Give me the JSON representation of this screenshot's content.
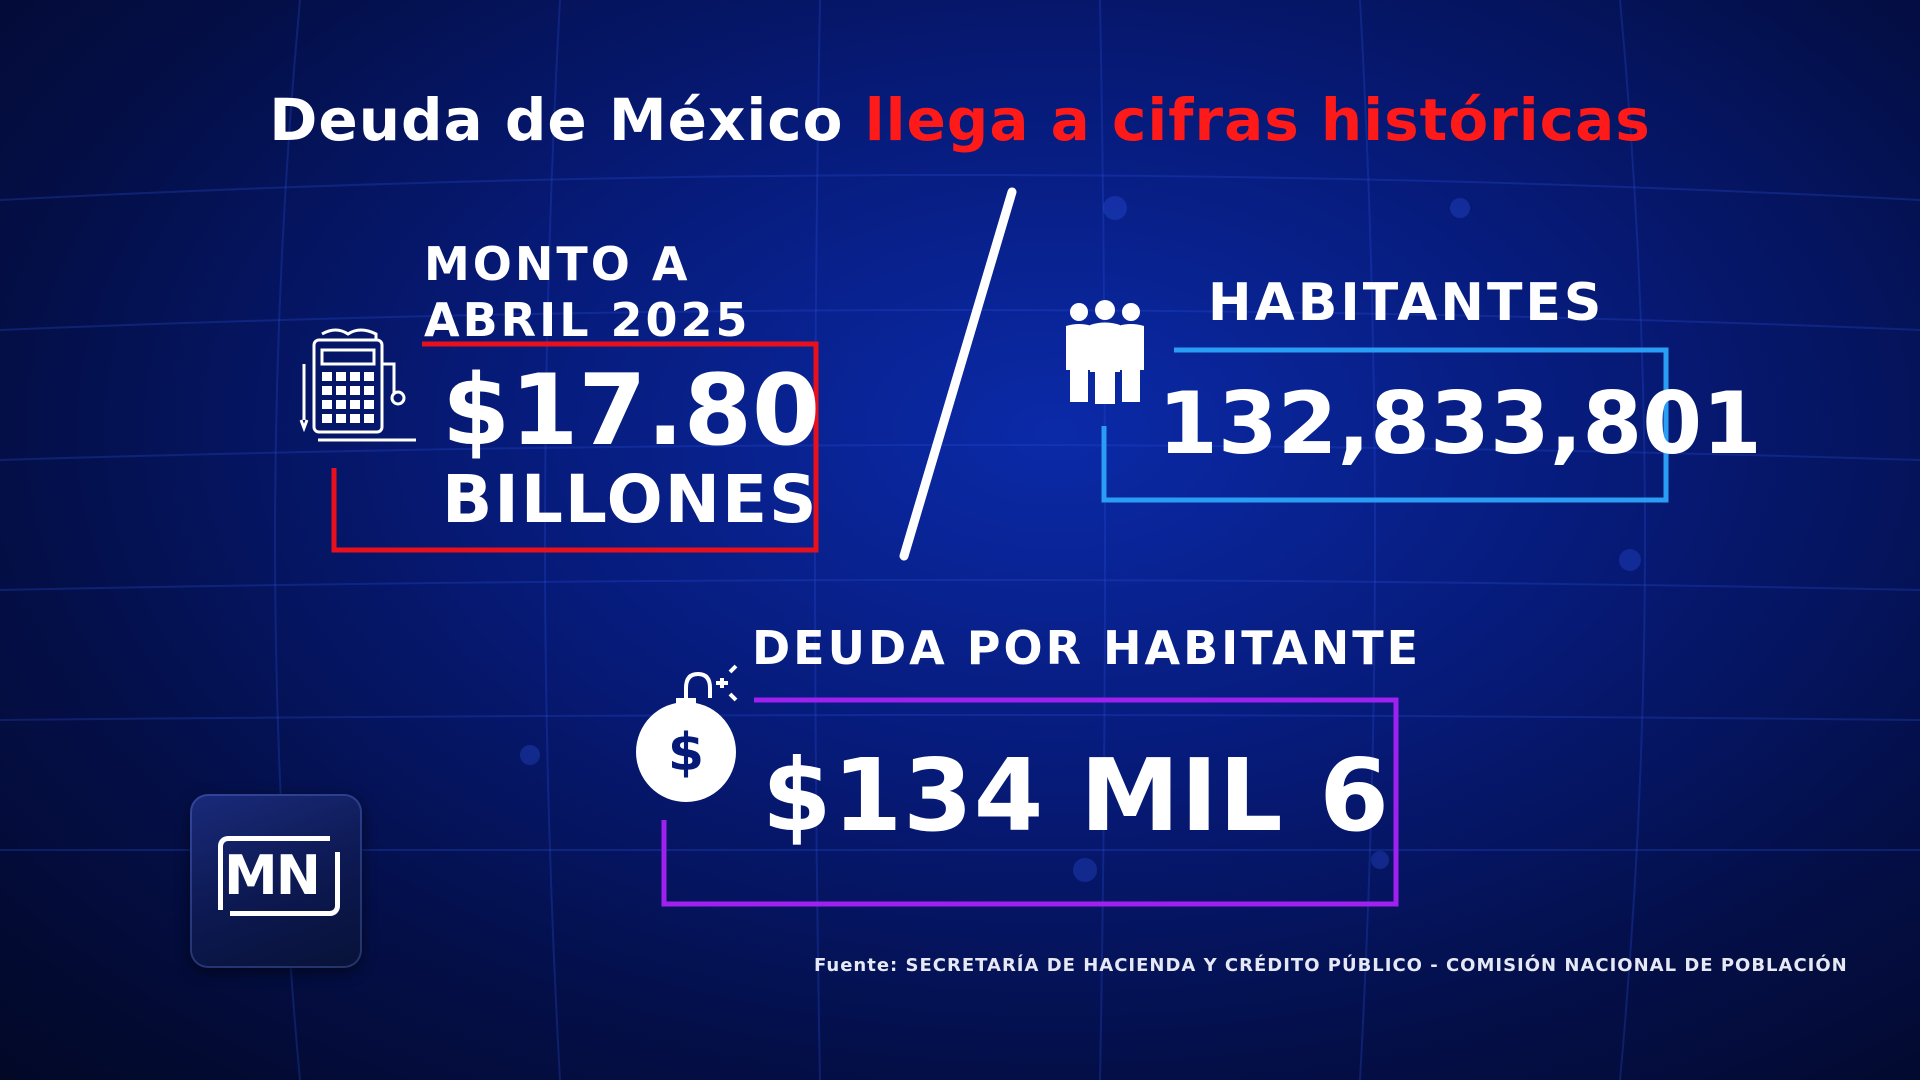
{
  "title": {
    "part1": "Deuda de México ",
    "part2": "llega a cifras históricas"
  },
  "monto": {
    "label_line1": "MONTO A",
    "label_line2": "ABRIL 2025",
    "value": "$17.80",
    "unit": "BILLONES",
    "icon": "calculator-icon"
  },
  "habitantes": {
    "label": "HABITANTES",
    "value": "132,833,801",
    "icon": "people-icon"
  },
  "deuda_por_habitante": {
    "label": "DEUDA POR HABITANTE",
    "value": "$134 MIL 6",
    "icon": "money-bomb-icon"
  },
  "logo": {
    "text": "MN"
  },
  "source": "Fuente: SECRETARÍA DE HACIENDA Y CRÉDITO PÚBLICO - COMISIÓN NACIONAL DE POBLACIÓN",
  "colors": {
    "accent_red": "#ff1a1a",
    "box_red": "#e8101c",
    "box_blue": "#2a9df4",
    "box_purple": "#a020f0",
    "background": "#061a78"
  }
}
